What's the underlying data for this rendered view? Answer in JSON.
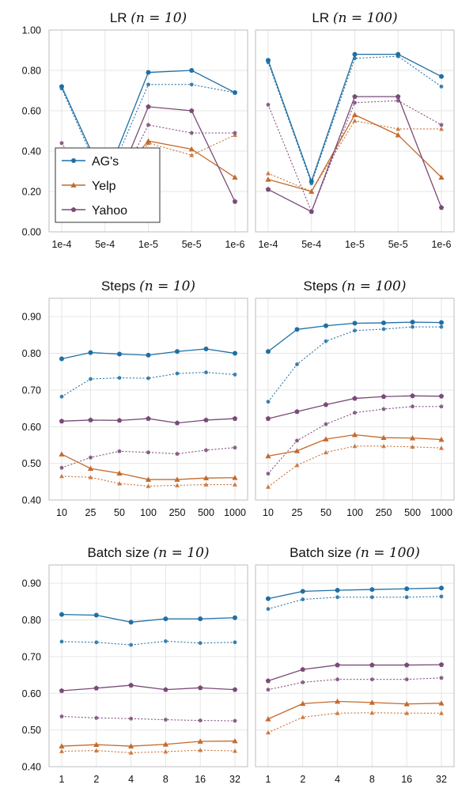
{
  "colors": {
    "AG's": "#1f6fa3",
    "Yelp": "#c46a2c",
    "Yahoo": "#7a4a78"
  },
  "legend": {
    "entries": [
      "AG's",
      "Yelp",
      "Yahoo"
    ]
  },
  "chart_data": [
    {
      "type": "line",
      "title": "LR",
      "title_math": "(n = 10)",
      "categories": [
        "1e-4",
        "5e-4",
        "1e-5",
        "5e-5",
        "1e-6"
      ],
      "ylim": [
        0.0,
        1.0
      ],
      "yticks": [
        "0.00",
        "0.20",
        "0.40",
        "0.60",
        "0.80",
        "1.00"
      ],
      "ytick_values": [
        0,
        0.2,
        0.4,
        0.6,
        0.8,
        1.0
      ],
      "grid": true,
      "legend": "middle-left",
      "series": [
        {
          "name": "AG's",
          "style": "solid",
          "values": [
            0.72,
            0.25,
            0.79,
            0.8,
            0.69
          ]
        },
        {
          "name": "AG's",
          "style": "dotted",
          "values": [
            0.71,
            0.23,
            0.73,
            0.73,
            0.69
          ]
        },
        {
          "name": "Yelp",
          "style": "solid",
          "values": [
            0.21,
            0.2,
            0.45,
            0.41,
            0.27
          ]
        },
        {
          "name": "Yelp",
          "style": "dotted",
          "values": [
            0.3,
            0.1,
            0.44,
            0.38,
            0.48
          ]
        },
        {
          "name": "Yahoo",
          "style": "solid",
          "values": [
            0.27,
            0.1,
            0.62,
            0.6,
            0.15
          ]
        },
        {
          "name": "Yahoo",
          "style": "dotted",
          "values": [
            0.44,
            0.1,
            0.53,
            0.49,
            0.49
          ]
        }
      ]
    },
    {
      "type": "line",
      "title": "LR",
      "title_math": "(n = 100)",
      "categories": [
        "1e-4",
        "5e-4",
        "1e-5",
        "5e-5",
        "1e-6"
      ],
      "ylim": [
        0.0,
        1.0
      ],
      "yticks": [],
      "ytick_values": [
        0,
        0.2,
        0.4,
        0.6,
        0.8,
        1.0
      ],
      "grid": true,
      "series": [
        {
          "name": "AG's",
          "style": "solid",
          "values": [
            0.85,
            0.25,
            0.88,
            0.88,
            0.77
          ]
        },
        {
          "name": "AG's",
          "style": "dotted",
          "values": [
            0.84,
            0.24,
            0.86,
            0.87,
            0.72
          ]
        },
        {
          "name": "Yelp",
          "style": "solid",
          "values": [
            0.26,
            0.2,
            0.58,
            0.48,
            0.27
          ]
        },
        {
          "name": "Yelp",
          "style": "dotted",
          "values": [
            0.29,
            0.2,
            0.55,
            0.51,
            0.51
          ]
        },
        {
          "name": "Yahoo",
          "style": "solid",
          "values": [
            0.21,
            0.1,
            0.67,
            0.67,
            0.12
          ]
        },
        {
          "name": "Yahoo",
          "style": "dotted",
          "values": [
            0.63,
            0.1,
            0.64,
            0.65,
            0.53
          ]
        }
      ]
    },
    {
      "type": "line",
      "title": "Steps",
      "title_math": "(n = 10)",
      "categories": [
        "10",
        "25",
        "50",
        "100",
        "250",
        "500",
        "1000"
      ],
      "ylim": [
        0.4,
        0.95
      ],
      "yticks": [
        "0.40",
        "0.50",
        "0.60",
        "0.70",
        "0.80",
        "0.90"
      ],
      "ytick_values": [
        0.4,
        0.5,
        0.6,
        0.7,
        0.8,
        0.9
      ],
      "grid": true,
      "series": [
        {
          "name": "AG's",
          "style": "solid",
          "values": [
            0.785,
            0.802,
            0.798,
            0.795,
            0.805,
            0.812,
            0.8
          ]
        },
        {
          "name": "AG's",
          "style": "dotted",
          "values": [
            0.682,
            0.73,
            0.733,
            0.732,
            0.745,
            0.748,
            0.742
          ]
        },
        {
          "name": "Yahoo",
          "style": "solid",
          "values": [
            0.615,
            0.618,
            0.617,
            0.622,
            0.61,
            0.618,
            0.622
          ]
        },
        {
          "name": "Yahoo",
          "style": "dotted",
          "values": [
            0.488,
            0.516,
            0.533,
            0.53,
            0.526,
            0.536,
            0.543
          ]
        },
        {
          "name": "Yelp",
          "style": "solid",
          "values": [
            0.525,
            0.486,
            0.473,
            0.456,
            0.456,
            0.46,
            0.461
          ]
        },
        {
          "name": "Yelp",
          "style": "dotted",
          "values": [
            0.465,
            0.462,
            0.445,
            0.438,
            0.44,
            0.442,
            0.442
          ]
        }
      ]
    },
    {
      "type": "line",
      "title": "Steps",
      "title_math": "(n = 100)",
      "categories": [
        "10",
        "25",
        "50",
        "100",
        "250",
        "500",
        "1000"
      ],
      "ylim": [
        0.4,
        0.95
      ],
      "yticks": [],
      "ytick_values": [
        0.4,
        0.5,
        0.6,
        0.7,
        0.8,
        0.9
      ],
      "grid": true,
      "series": [
        {
          "name": "AG's",
          "style": "solid",
          "values": [
            0.805,
            0.865,
            0.875,
            0.882,
            0.883,
            0.885,
            0.884
          ]
        },
        {
          "name": "AG's",
          "style": "dotted",
          "values": [
            0.668,
            0.77,
            0.833,
            0.862,
            0.866,
            0.872,
            0.872
          ]
        },
        {
          "name": "Yahoo",
          "style": "solid",
          "values": [
            0.622,
            0.641,
            0.66,
            0.677,
            0.682,
            0.684,
            0.683
          ]
        },
        {
          "name": "Yahoo",
          "style": "dotted",
          "values": [
            0.472,
            0.562,
            0.607,
            0.638,
            0.648,
            0.655,
            0.655
          ]
        },
        {
          "name": "Yelp",
          "style": "solid",
          "values": [
            0.52,
            0.534,
            0.566,
            0.578,
            0.57,
            0.569,
            0.565
          ]
        },
        {
          "name": "Yelp",
          "style": "dotted",
          "values": [
            0.436,
            0.495,
            0.53,
            0.547,
            0.547,
            0.545,
            0.542
          ]
        }
      ]
    },
    {
      "type": "line",
      "title": "Batch size",
      "title_math": "(n = 10)",
      "categories": [
        "1",
        "2",
        "4",
        "8",
        "16",
        "32"
      ],
      "ylim": [
        0.4,
        0.95
      ],
      "yticks": [
        "0.40",
        "0.50",
        "0.60",
        "0.70",
        "0.80",
        "0.90"
      ],
      "ytick_values": [
        0.4,
        0.5,
        0.6,
        0.7,
        0.8,
        0.9
      ],
      "grid": true,
      "series": [
        {
          "name": "AG's",
          "style": "solid",
          "values": [
            0.815,
            0.813,
            0.794,
            0.803,
            0.803,
            0.806
          ]
        },
        {
          "name": "AG's",
          "style": "dotted",
          "values": [
            0.741,
            0.739,
            0.732,
            0.742,
            0.737,
            0.739
          ]
        },
        {
          "name": "Yahoo",
          "style": "solid",
          "values": [
            0.607,
            0.614,
            0.622,
            0.61,
            0.615,
            0.61
          ]
        },
        {
          "name": "Yahoo",
          "style": "dotted",
          "values": [
            0.537,
            0.533,
            0.531,
            0.528,
            0.526,
            0.525
          ]
        },
        {
          "name": "Yelp",
          "style": "solid",
          "values": [
            0.456,
            0.46,
            0.456,
            0.461,
            0.469,
            0.47
          ]
        },
        {
          "name": "Yelp",
          "style": "dotted",
          "values": [
            0.442,
            0.444,
            0.438,
            0.441,
            0.445,
            0.443
          ]
        }
      ]
    },
    {
      "type": "line",
      "title": "Batch size",
      "title_math": "(n = 100)",
      "categories": [
        "1",
        "2",
        "4",
        "8",
        "16",
        "32"
      ],
      "ylim": [
        0.4,
        0.95
      ],
      "yticks": [],
      "ytick_values": [
        0.4,
        0.5,
        0.6,
        0.7,
        0.8,
        0.9
      ],
      "grid": true,
      "series": [
        {
          "name": "AG's",
          "style": "solid",
          "values": [
            0.858,
            0.878,
            0.881,
            0.883,
            0.885,
            0.887
          ]
        },
        {
          "name": "AG's",
          "style": "dotted",
          "values": [
            0.83,
            0.856,
            0.862,
            0.862,
            0.862,
            0.864
          ]
        },
        {
          "name": "Yahoo",
          "style": "solid",
          "values": [
            0.634,
            0.665,
            0.677,
            0.677,
            0.677,
            0.678
          ]
        },
        {
          "name": "Yahoo",
          "style": "dotted",
          "values": [
            0.61,
            0.63,
            0.638,
            0.638,
            0.638,
            0.642
          ]
        },
        {
          "name": "Yelp",
          "style": "solid",
          "values": [
            0.53,
            0.572,
            0.578,
            0.575,
            0.571,
            0.573
          ]
        },
        {
          "name": "Yelp",
          "style": "dotted",
          "values": [
            0.493,
            0.535,
            0.546,
            0.547,
            0.546,
            0.546
          ]
        }
      ]
    }
  ]
}
